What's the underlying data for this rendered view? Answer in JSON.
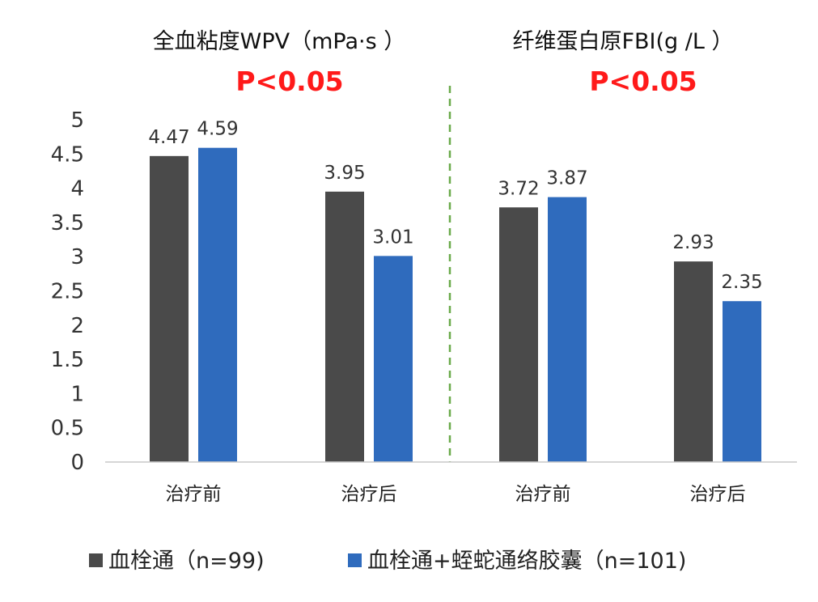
{
  "chart_data": {
    "type": "bar",
    "panels": [
      {
        "title": "全血粘度WPV（mPa·s ）",
        "annotation": "P<0.05",
        "categories": [
          "治疗前",
          "治疗后"
        ],
        "series": [
          {
            "name": "血栓通（n=99)",
            "values": [
              4.47,
              3.95
            ],
            "color": "#4a4a4a"
          },
          {
            "name": "血栓通+蛭蛇通络胶囊（n=101)",
            "values": [
              4.59,
              3.01
            ],
            "color": "#2f6bbd"
          }
        ]
      },
      {
        "title": "纤维蛋白原FBI(g /L ）",
        "annotation": "P<0.05",
        "categories": [
          "治疗前",
          "治疗后"
        ],
        "series": [
          {
            "name": "血栓通（n=99)",
            "values": [
              3.72,
              2.93
            ],
            "color": "#4a4a4a"
          },
          {
            "name": "血栓通+蛭蛇通络胶囊（n=101)",
            "values": [
              3.87,
              2.35
            ],
            "color": "#2f6bbd"
          }
        ]
      }
    ],
    "y_ticks": [
      "0",
      "0.5",
      "1",
      "1.5",
      "2",
      "2.5",
      "3",
      "3.5",
      "4",
      "4.5",
      "5"
    ],
    "ylim": [
      0,
      5
    ],
    "grid": false,
    "divider": "dashed",
    "divider_color": "#6aaa4a",
    "legend_position": "bottom",
    "legend": [
      {
        "label": "血栓通（n=99)",
        "color": "#4a4a4a"
      },
      {
        "label": "血栓通+蛭蛇通络胶囊（n=101)",
        "color": "#2f6bbd"
      }
    ]
  }
}
